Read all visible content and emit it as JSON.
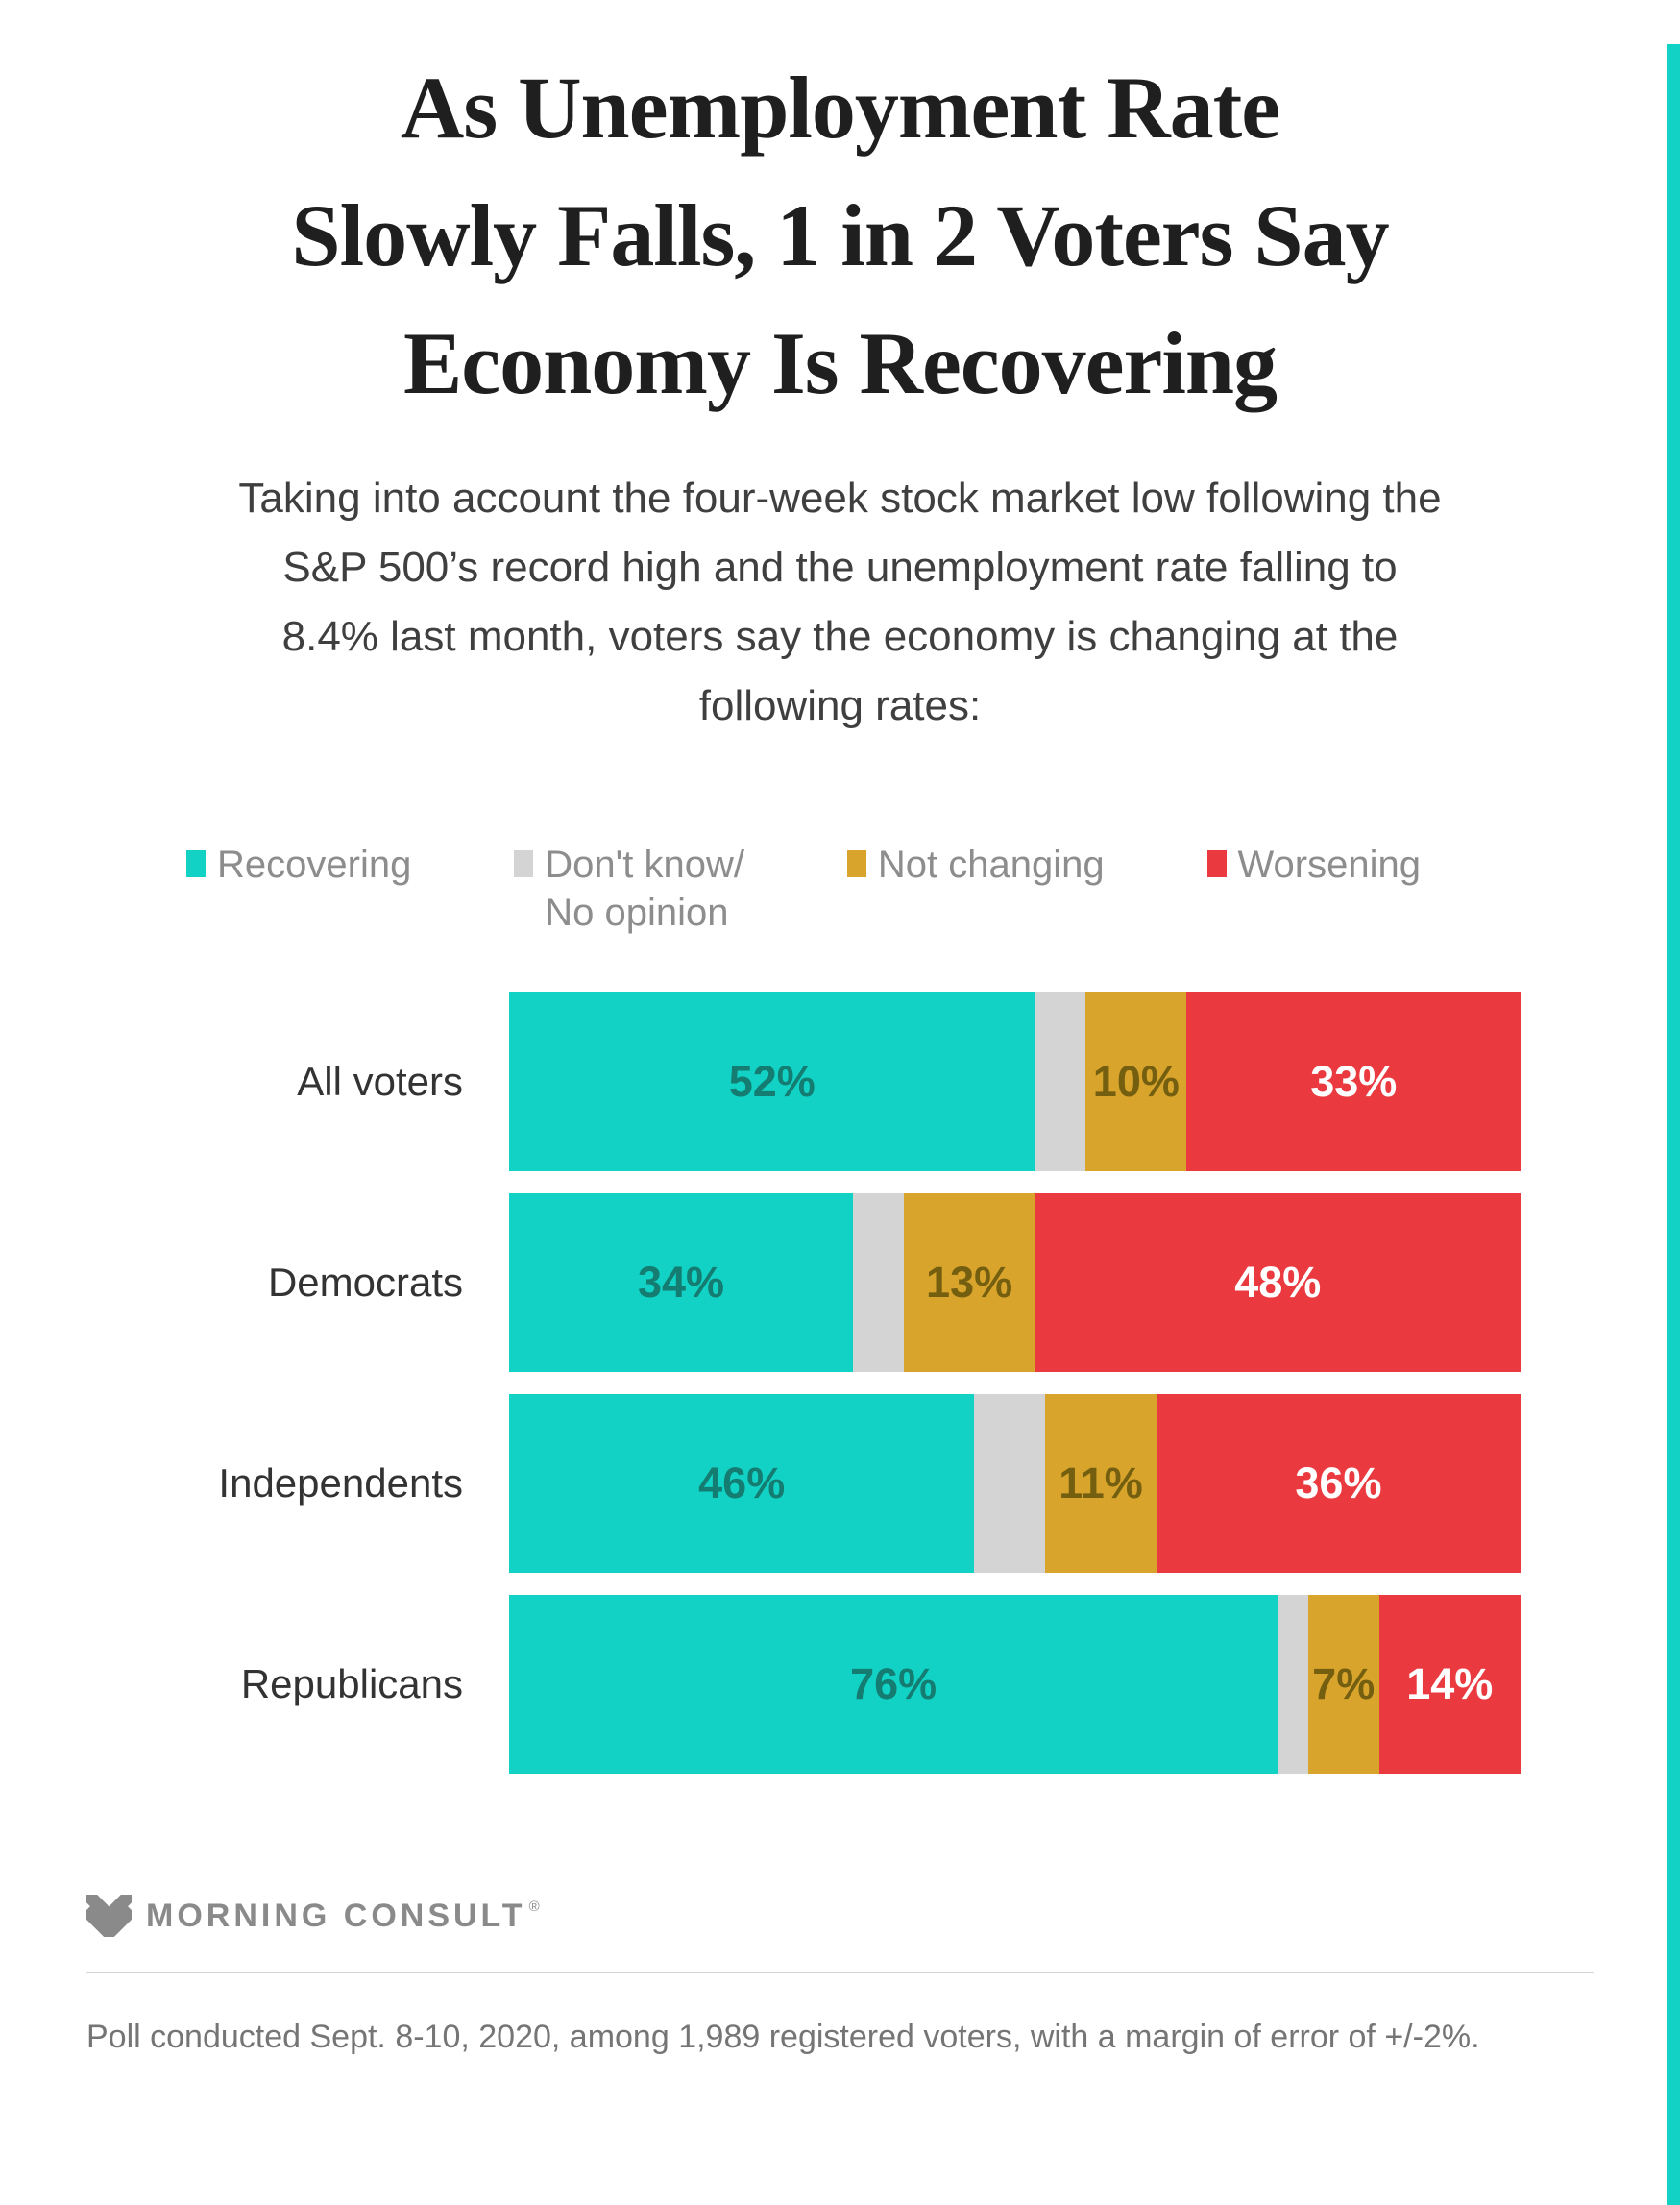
{
  "header": {
    "title_lines": [
      "As Unemployment Rate",
      "Slowly Falls, 1 in 2 Voters Say",
      "Economy Is Recovering"
    ],
    "subtitle": "Taking into account the four-week stock market low following the S&P 500’s record high and the unemployment rate falling to 8.4% last month, voters say the economy is changing at the following rates:"
  },
  "legend": {
    "items": [
      {
        "label": "Recovering"
      },
      {
        "label": "Don't know/\nNo opinion"
      },
      {
        "label": "Not changing"
      },
      {
        "label": "Worsening"
      }
    ]
  },
  "chart_data": {
    "type": "bar",
    "orientation": "horizontal-stacked",
    "categories": [
      "All voters",
      "Democrats",
      "Independents",
      "Republicans"
    ],
    "series": [
      {
        "name": "Recovering",
        "color": "#12d2c6",
        "label_color": "#147c70",
        "show_labels": true,
        "values": [
          52,
          34,
          46,
          76
        ]
      },
      {
        "name": "Don't know/No opinion",
        "color": "#d4d4d4",
        "label_color": null,
        "show_labels": false,
        "values": [
          5,
          5,
          7,
          3
        ]
      },
      {
        "name": "Not changing",
        "color": "#d8a42c",
        "label_color": "#745f10",
        "show_labels": true,
        "values": [
          10,
          13,
          11,
          7
        ]
      },
      {
        "name": "Worsening",
        "color": "#ea3a40",
        "label_color": "#ffffff",
        "show_labels": true,
        "values": [
          33,
          48,
          36,
          14
        ]
      }
    ],
    "value_suffix": "%",
    "xlim": [
      0,
      100
    ],
    "grid": false,
    "legend_position": "top"
  },
  "footer": {
    "logo_text": "MORNING CONSULT",
    "registered_mark": "®",
    "source": "Poll conducted Sept. 8-10, 2020, among 1,989 registered voters, with a margin of error of +/-2%."
  },
  "colors": {
    "accent_stripe": "#12d2c6",
    "title": "#1f1f1f",
    "subtitle": "#3f3f3f",
    "legend_text": "#8d8d8d",
    "logo_gray": "#8a8a8a"
  }
}
